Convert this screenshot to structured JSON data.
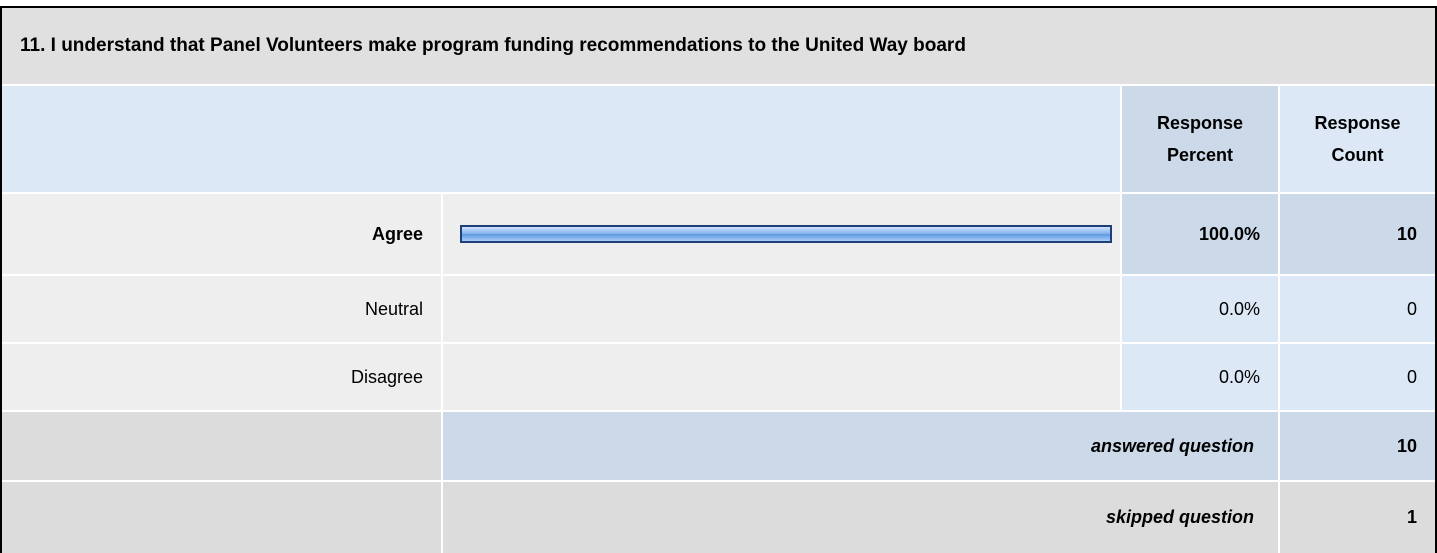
{
  "question": {
    "title": "11. I understand that Panel Volunteers make program funding recommendations to the United Way board"
  },
  "header": {
    "percent": "Response Percent",
    "count": "Response Count"
  },
  "answers": {
    "labels": [
      "Agree",
      "Neutral",
      "Disagree"
    ],
    "percent": [
      100,
      0,
      0
    ],
    "percent_labels": [
      "100.0%",
      "0.0%",
      "0.0%"
    ],
    "counts": [
      10,
      0,
      0
    ]
  },
  "summary": {
    "answered_label": "answered question",
    "answered": 10,
    "skipped_label": "skipped question",
    "skipped": 1
  }
}
